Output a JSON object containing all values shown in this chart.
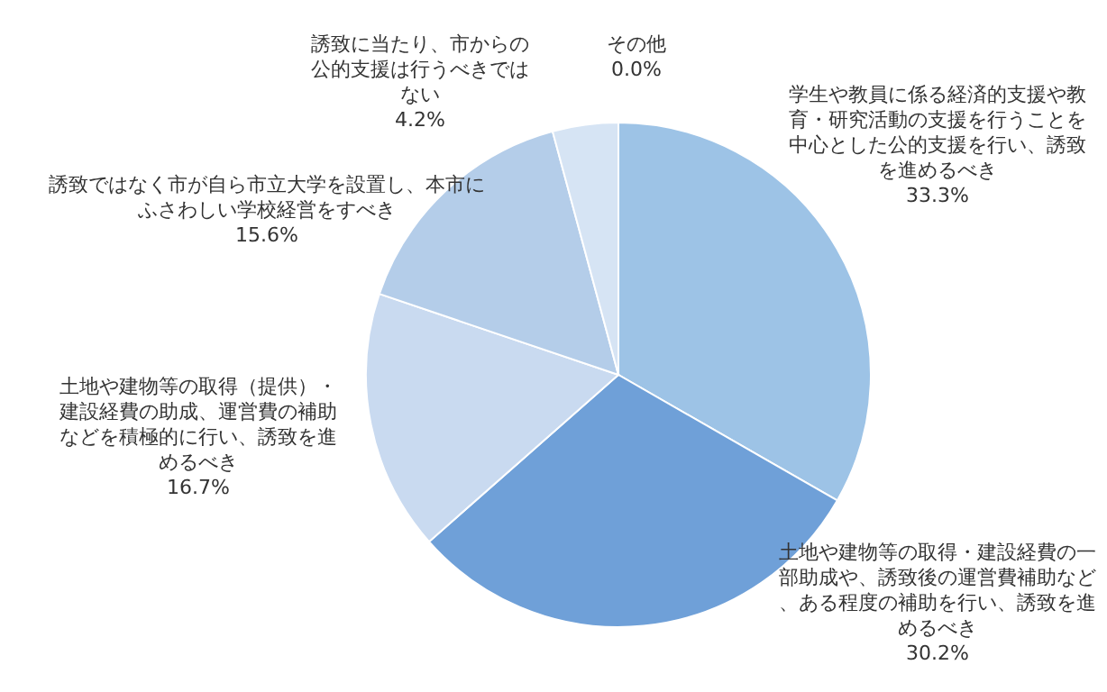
{
  "chart_data": {
    "type": "pie",
    "categories": [
      "学生や教員に係る経済的支援や教育・研究活動の支援を行うことを中心とした公的支援を行い、誘致を進めるべき",
      "土地や建物等の取得・建設経費の一部助成や、誘致後の運営費補助など、ある程度の補助を行い、誘致を進めるべき",
      "土地や建物等の取得（提供）・建設経費の助成、運営費の補助などを積極的に行い、誘致を進めるべき",
      "誘致ではなく市が自ら市立大学を設置し、本市にふさわしい学校経営をすべき",
      "誘致に当たり、市からの公的支援は行うべきではない",
      "その他"
    ],
    "values": [
      33.3,
      30.2,
      16.7,
      15.6,
      4.2,
      0.0
    ],
    "value_labels": [
      "33.3%",
      "30.2%",
      "16.7%",
      "15.6%",
      "4.2%",
      "0.0%"
    ],
    "colors": [
      "#9dc3e6",
      "#6fa0d8",
      "#c9daf0",
      "#b4cde9",
      "#d6e4f4",
      "#bdd7ee"
    ],
    "legend": false
  }
}
